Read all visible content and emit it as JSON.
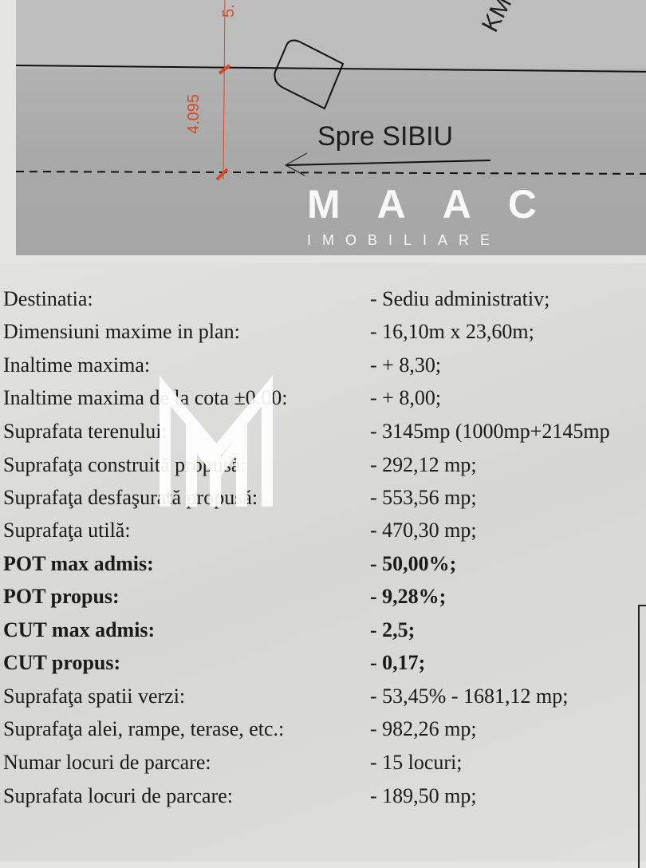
{
  "drawing": {
    "direction_label": "Spre SIBIU",
    "km_label": "KM",
    "dimension_lower": "4.095",
    "dimension_upper": "5.",
    "dimension_color": "#d44a2a"
  },
  "specs": [
    {
      "label": "Destinatia:",
      "value": "- Sediu administrativ;",
      "bold": false
    },
    {
      "label": "Dimensiuni maxime in plan:",
      "value": "- 16,10m x 23,60m;",
      "bold": false
    },
    {
      "label": "Inaltime maxima:",
      "value": "- + 8,30;",
      "bold": false
    },
    {
      "label": "Inaltime maxima de la cota ±0.00:",
      "value": "- + 8,00;",
      "bold": false
    },
    {
      "label": "Suprafata terenului:",
      "value": "- 3145mp (1000mp+2145mp",
      "bold": false
    },
    {
      "label": "Suprafaţa  construită propusă:",
      "value": "- 292,12 mp;",
      "bold": false
    },
    {
      "label": "Suprafaţa  desfaşurată propusă:",
      "value": "- 553,56 mp;",
      "bold": false
    },
    {
      "label": "Suprafaţa  utilă:",
      "value": "- 470,30 mp;",
      "bold": false
    },
    {
      "label": "POT max admis:",
      "value": "- 50,00%;",
      "bold": true
    },
    {
      "label": "POT propus:",
      "value": "- 9,28%;",
      "bold": true
    },
    {
      "label": "CUT max admis:",
      "value": "- 2,5;",
      "bold": true
    },
    {
      "label": "CUT propus:",
      "value": "- 0,17;",
      "bold": true
    },
    {
      "label": "Suprafaţa spatii verzi:",
      "value": "- 53,45% - 1681,12 mp;",
      "bold": false
    },
    {
      "label": "Suprafaţa alei, rampe, terase, etc.:",
      "value": "- 982,26 mp;",
      "bold": false
    },
    {
      "label": "Numar locuri de parcare:",
      "value": "- 15 locuri;",
      "bold": false
    },
    {
      "label": "Suprafata locuri de parcare:",
      "value": "- 189,50 mp;",
      "bold": false
    }
  ],
  "watermark": {
    "brand": "MAAC",
    "sub": "IMOBILIARE",
    "color": "#ffffff"
  }
}
